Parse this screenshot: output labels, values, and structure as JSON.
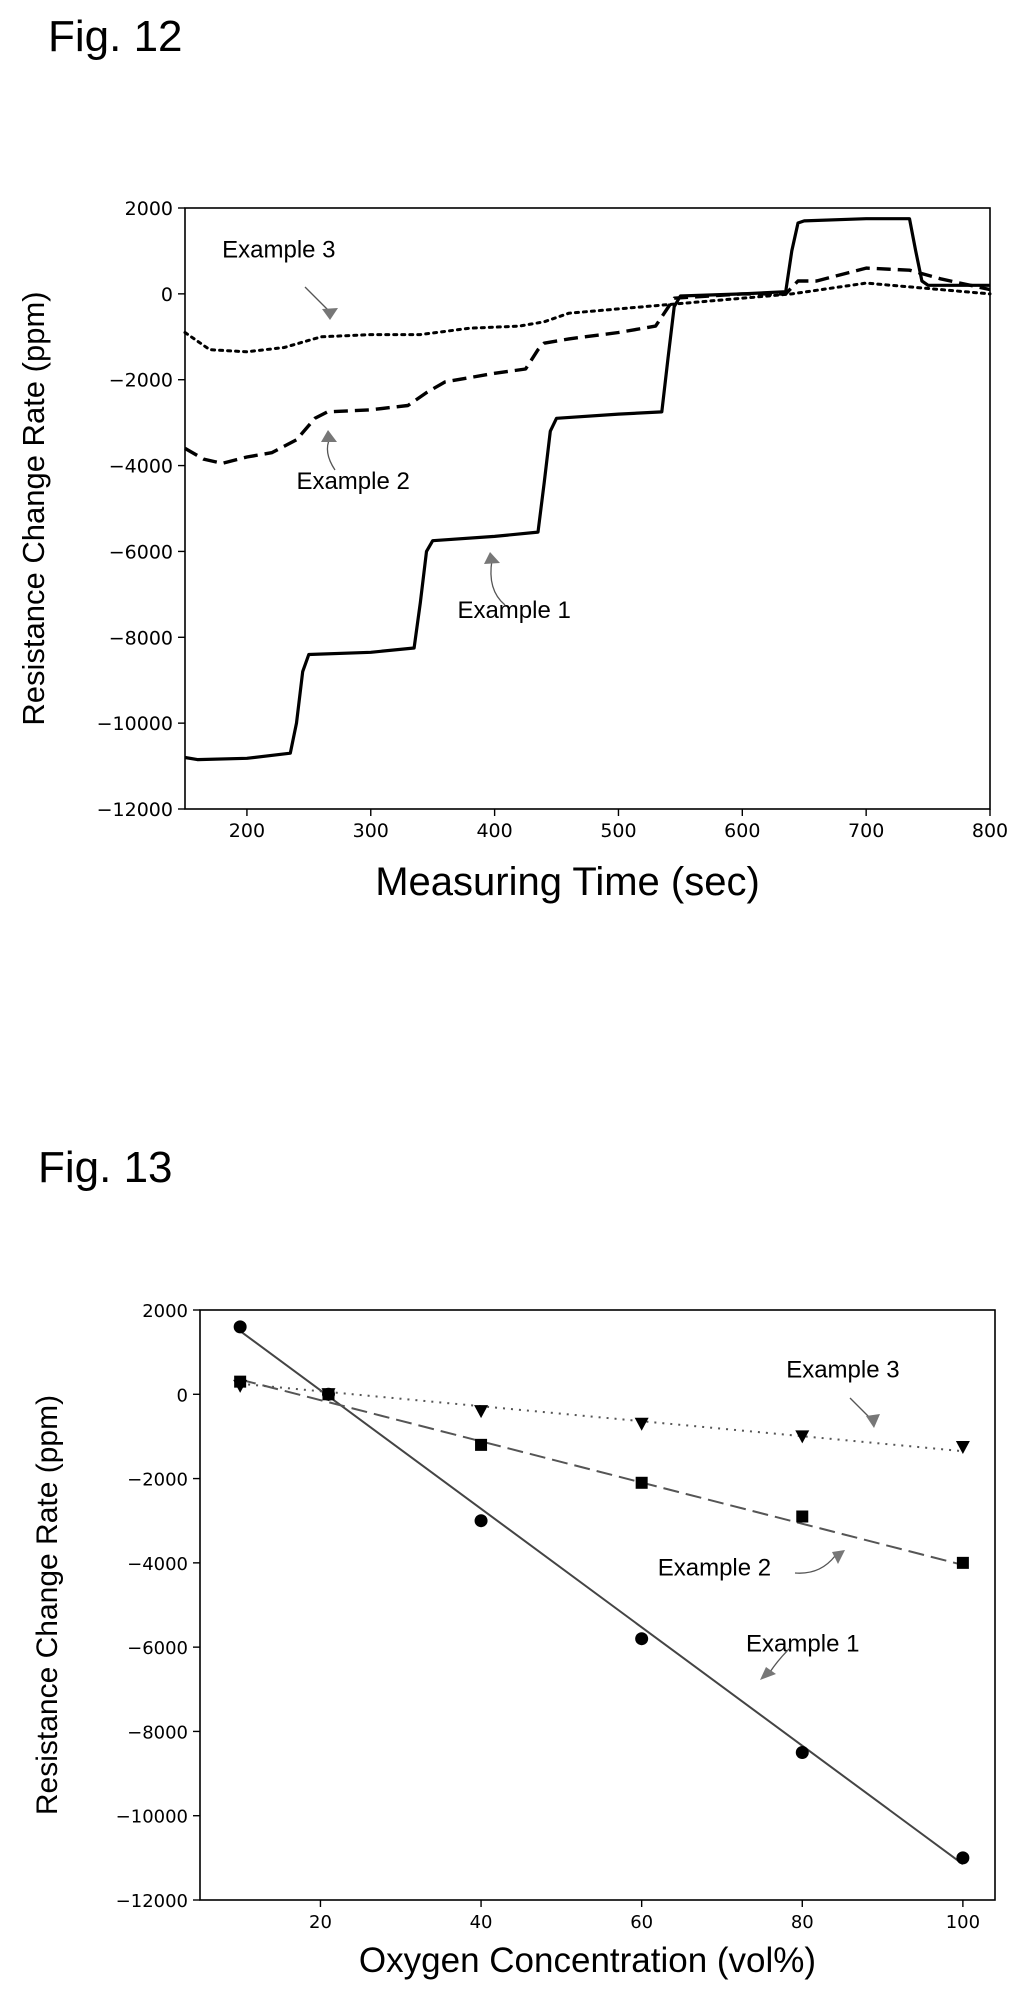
{
  "figures": [
    {
      "label": "Fig. 12"
    },
    {
      "label": "Fig. 13"
    }
  ],
  "chart_data": [
    {
      "type": "line",
      "title": "",
      "xlabel": "Measuring Time (sec)",
      "ylabel": "Resistance Change Rate (ppm)",
      "xlim": [
        150,
        800
      ],
      "ylim": [
        -12000,
        2000
      ],
      "xticks": [
        200,
        300,
        400,
        500,
        600,
        700,
        800
      ],
      "yticks": [
        2000,
        0,
        -2000,
        -4000,
        -6000,
        -8000,
        -10000,
        -12000
      ],
      "ytick_labels": [
        "2000",
        "0",
        "−2000",
        "−4000",
        "−6000",
        "−8000",
        "−10000",
        "−12000"
      ],
      "grid": false,
      "series": [
        {
          "name": "Example 1",
          "style": "solid",
          "x": [
            150,
            160,
            200,
            235,
            240,
            245,
            250,
            300,
            335,
            340,
            345,
            350,
            400,
            435,
            440,
            445,
            450,
            500,
            535,
            540,
            545,
            550,
            600,
            635,
            640,
            645,
            650,
            700,
            735,
            740,
            745,
            750,
            800
          ],
          "y": [
            -10800,
            -10850,
            -10820,
            -10700,
            -10000,
            -8800,
            -8400,
            -8350,
            -8250,
            -7200,
            -6000,
            -5750,
            -5650,
            -5550,
            -4400,
            -3200,
            -2900,
            -2800,
            -2750,
            -1500,
            -300,
            -50,
            0,
            50,
            1000,
            1650,
            1700,
            1750,
            1750,
            1000,
            300,
            200,
            200
          ]
        },
        {
          "name": "Example 2",
          "style": "dashed",
          "x": [
            150,
            165,
            180,
            200,
            220,
            240,
            255,
            265,
            300,
            330,
            345,
            360,
            400,
            425,
            435,
            440,
            460,
            500,
            530,
            545,
            600,
            635,
            645,
            660,
            700,
            735,
            760,
            800
          ],
          "y": [
            -3600,
            -3850,
            -3950,
            -3800,
            -3700,
            -3400,
            -2900,
            -2750,
            -2700,
            -2600,
            -2300,
            -2050,
            -1850,
            -1750,
            -1300,
            -1150,
            -1050,
            -900,
            -750,
            -100,
            0,
            0,
            300,
            300,
            600,
            550,
            350,
            100
          ]
        },
        {
          "name": "Example 3",
          "style": "dotted",
          "x": [
            150,
            170,
            200,
            230,
            260,
            300,
            340,
            380,
            420,
            440,
            460,
            500,
            540,
            600,
            640,
            700,
            800
          ],
          "y": [
            -900,
            -1300,
            -1350,
            -1250,
            -1000,
            -950,
            -950,
            -800,
            -750,
            -650,
            -450,
            -350,
            -250,
            -100,
            0,
            250,
            0
          ]
        }
      ],
      "annotations": [
        {
          "text": "Example 3",
          "x": 180,
          "y": 850
        },
        {
          "text": "Example 2",
          "x": 240,
          "y": -4550
        },
        {
          "text": "Example 1",
          "x": 370,
          "y": -7550
        }
      ]
    },
    {
      "type": "scatter",
      "title": "",
      "xlabel": "Oxygen Concentration (vol%)",
      "ylabel": "Resistance Change Rate (ppm)",
      "xlim": [
        5,
        104
      ],
      "ylim": [
        -12000,
        2000
      ],
      "xticks": [
        20,
        40,
        60,
        80,
        100
      ],
      "yticks": [
        2000,
        0,
        -2000,
        -4000,
        -6000,
        -8000,
        -10000,
        -12000
      ],
      "ytick_labels": [
        "2000",
        "0",
        "−2000",
        "−4000",
        "−6000",
        "−8000",
        "−10000",
        "−12000"
      ],
      "grid": false,
      "series": [
        {
          "name": "Example 1",
          "marker": "circle",
          "fit": "solid",
          "x": [
            10,
            21,
            40,
            60,
            80,
            100
          ],
          "y": [
            1600,
            0,
            -3000,
            -5800,
            -8500,
            -11000
          ],
          "fit_line": [
            [
              10,
              1500
            ],
            [
              100,
              -11150
            ]
          ]
        },
        {
          "name": "Example 2",
          "marker": "square",
          "fit": "dashed",
          "x": [
            10,
            21,
            40,
            60,
            80,
            100
          ],
          "y": [
            300,
            0,
            -1200,
            -2100,
            -2900,
            -4000
          ],
          "fit_line": [
            [
              10,
              350
            ],
            [
              100,
              -4050
            ]
          ]
        },
        {
          "name": "Example 3",
          "marker": "triangle-down",
          "fit": "dotted",
          "x": [
            10,
            21,
            40,
            60,
            80,
            100
          ],
          "y": [
            200,
            0,
            -400,
            -700,
            -1000,
            -1250
          ],
          "fit_line": [
            [
              10,
              250
            ],
            [
              100,
              -1350
            ]
          ]
        }
      ],
      "annotations": [
        {
          "text": "Example 3",
          "x": 78,
          "y": 400
        },
        {
          "text": "Example 2",
          "x": 62,
          "y": -4300
        },
        {
          "text": "Example 1",
          "x": 73,
          "y": -6100
        }
      ]
    }
  ]
}
